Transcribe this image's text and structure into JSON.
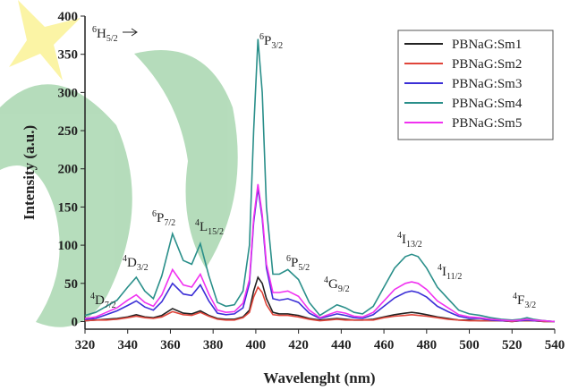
{
  "chart_data": {
    "type": "line",
    "x_label": "Wavelenght (nm)",
    "y_label": "Intensity (a.u.)",
    "xlim": [
      320,
      540
    ],
    "xticks": [
      320,
      340,
      360,
      380,
      400,
      420,
      440,
      460,
      480,
      500,
      520,
      540
    ],
    "ylim": [
      -10,
      400
    ],
    "yticks": [
      0,
      50,
      100,
      150,
      200,
      250,
      300,
      350,
      400
    ],
    "x": [
      320,
      325,
      330,
      335,
      340,
      344,
      348,
      352,
      356,
      361,
      366,
      370,
      374,
      378,
      382,
      386,
      390,
      394,
      397,
      399,
      401,
      403,
      405,
      408,
      411,
      415,
      420,
      425,
      430,
      434,
      438,
      442,
      446,
      450,
      455,
      460,
      465,
      470,
      473,
      476,
      480,
      485,
      490,
      495,
      500,
      505,
      510,
      515,
      520,
      524,
      527,
      530,
      535,
      540
    ],
    "series": [
      {
        "name": "PBNaG:Sm1",
        "color": "#222222",
        "values": [
          1,
          2,
          3,
          4,
          6,
          9,
          6,
          5,
          8,
          17,
          11,
          10,
          14,
          8,
          4,
          3,
          3,
          6,
          15,
          40,
          58,
          50,
          30,
          12,
          10,
          10,
          8,
          4,
          2,
          3,
          4,
          3,
          2,
          2,
          3,
          6,
          9,
          11,
          12,
          11,
          9,
          6,
          4,
          2,
          2,
          1,
          1,
          1,
          0,
          1,
          1,
          1,
          0,
          0
        ]
      },
      {
        "name": "PBNaG:Sm2",
        "color": "#e0453a",
        "values": [
          1,
          2,
          2,
          3,
          5,
          7,
          5,
          4,
          6,
          13,
          9,
          8,
          12,
          7,
          3,
          2,
          2,
          5,
          12,
          32,
          45,
          38,
          22,
          9,
          8,
          8,
          6,
          3,
          1,
          2,
          3,
          2,
          2,
          2,
          2,
          5,
          7,
          8,
          9,
          8,
          7,
          5,
          3,
          2,
          1,
          1,
          1,
          1,
          0,
          1,
          1,
          1,
          0,
          0
        ]
      },
      {
        "name": "PBNaG:Sm3",
        "color": "#3b2fd6",
        "values": [
          3,
          4,
          9,
          14,
          21,
          27,
          19,
          15,
          26,
          50,
          36,
          34,
          48,
          27,
          11,
          9,
          10,
          18,
          50,
          130,
          175,
          135,
          70,
          30,
          28,
          30,
          25,
          11,
          4,
          7,
          10,
          8,
          5,
          4,
          9,
          20,
          31,
          38,
          40,
          38,
          32,
          20,
          13,
          7,
          4,
          4,
          2,
          1,
          1,
          1,
          2,
          1,
          1,
          0
        ]
      },
      {
        "name": "PBNaG:Sm4",
        "color": "#2a8f8a",
        "values": [
          8,
          12,
          20,
          28,
          45,
          58,
          40,
          30,
          60,
          115,
          80,
          75,
          102,
          60,
          25,
          20,
          22,
          40,
          100,
          250,
          370,
          300,
          150,
          62,
          62,
          68,
          55,
          25,
          8,
          15,
          22,
          18,
          12,
          10,
          20,
          45,
          70,
          85,
          88,
          85,
          70,
          45,
          30,
          15,
          10,
          8,
          5,
          3,
          2,
          3,
          5,
          3,
          1,
          0
        ]
      },
      {
        "name": "PBNaG:Sm5",
        "color": "#f032f0",
        "values": [
          4,
          6,
          12,
          18,
          28,
          35,
          25,
          20,
          35,
          68,
          48,
          45,
          62,
          36,
          15,
          12,
          13,
          24,
          55,
          135,
          180,
          140,
          75,
          38,
          38,
          40,
          33,
          15,
          5,
          9,
          13,
          11,
          7,
          6,
          12,
          27,
          42,
          50,
          52,
          50,
          42,
          27,
          18,
          9,
          6,
          5,
          3,
          2,
          1,
          2,
          3,
          2,
          1,
          0
        ]
      }
    ],
    "annotations": [
      {
        "sup": "6",
        "term": "H",
        "sub": "5/2"
      },
      {
        "sup": "6",
        "term": "P",
        "sub": "3/2"
      },
      {
        "sup": "6",
        "term": "P",
        "sub": "7/2"
      },
      {
        "sup": "4",
        "term": "L",
        "sub": "15/2"
      },
      {
        "sup": "4",
        "term": "D",
        "sub": "3/2"
      },
      {
        "sup": "4",
        "term": "D",
        "sub": "7/2"
      },
      {
        "sup": "6",
        "term": "P",
        "sub": "5/2"
      },
      {
        "sup": "4",
        "term": "G",
        "sub": "9/2"
      },
      {
        "sup": "4",
        "term": "I",
        "sub": "13/2"
      },
      {
        "sup": "4",
        "term": "I",
        "sub": "11/2"
      },
      {
        "sup": "4",
        "term": "F",
        "sub": "3/2"
      }
    ]
  }
}
